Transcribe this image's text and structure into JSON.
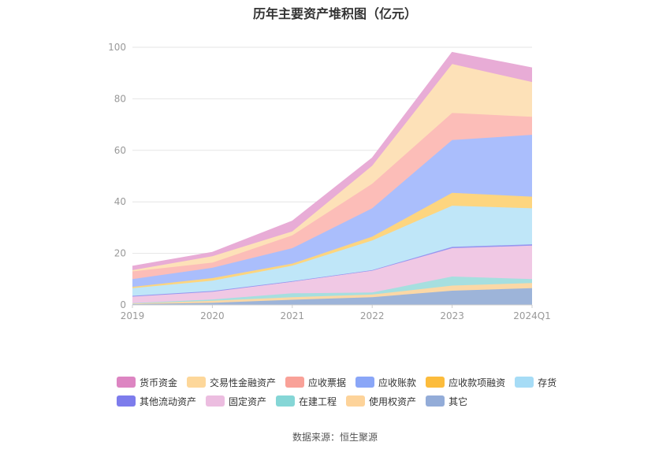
{
  "chart_data": {
    "type": "area",
    "title": "历年主要资产堆积图（亿元）",
    "categories": [
      "2019",
      "2020",
      "2021",
      "2022",
      "2023",
      "2024Q1"
    ],
    "y_ticks": [
      "0",
      "20",
      "40",
      "60",
      "80",
      "100"
    ],
    "ylim": [
      0,
      100
    ],
    "stacked": true,
    "grid": true,
    "legend_position": "bottom",
    "series": [
      {
        "name": "其它",
        "color": "#9db4d9",
        "values": [
          0.3,
          0.8,
          2.0,
          3.0,
          5.5,
          6.5
        ]
      },
      {
        "name": "使用权资产",
        "color": "#fbd8a6",
        "values": [
          0.2,
          0.8,
          1.0,
          1.0,
          2.0,
          2.0
        ]
      },
      {
        "name": "在建工程",
        "color": "#a6dfdf",
        "values": [
          0.2,
          0.5,
          1.5,
          0.8,
          3.5,
          1.5
        ]
      },
      {
        "name": "固定资产",
        "color": "#f0c8e4",
        "values": [
          2.5,
          3.0,
          4.5,
          8.5,
          11.0,
          13.0
        ]
      },
      {
        "name": "其他流动资产",
        "color": "#9796f0",
        "values": [
          0.3,
          0.3,
          0.2,
          0.2,
          0.5,
          0.5
        ]
      },
      {
        "name": "存货",
        "color": "#bfe6f8",
        "values": [
          3.0,
          4.0,
          6.0,
          11.5,
          16.0,
          14.0
        ]
      },
      {
        "name": "应收款项融资",
        "color": "#fdd57f",
        "values": [
          0.5,
          1.0,
          0.8,
          1.5,
          5.0,
          4.5
        ]
      },
      {
        "name": "应收账款",
        "color": "#aabefc",
        "values": [
          3.0,
          4.0,
          6.0,
          11.0,
          20.5,
          24.0
        ]
      },
      {
        "name": "应收票据",
        "color": "#fcbdb8",
        "values": [
          3.0,
          2.0,
          5.0,
          9.5,
          10.5,
          7.0
        ]
      },
      {
        "name": "交易性金融资产",
        "color": "#fde1b8",
        "values": [
          0.5,
          2.5,
          1.5,
          7.0,
          19.0,
          13.5
        ]
      },
      {
        "name": "货币资金",
        "color": "#e8acd6",
        "values": [
          1.5,
          1.5,
          4.0,
          3.0,
          4.5,
          5.5
        ]
      }
    ],
    "legend_rows": [
      [
        {
          "name": "货币资金",
          "color": "#dd85c2"
        },
        {
          "name": "交易性金融资产",
          "color": "#fdd79a"
        },
        {
          "name": "应收票据",
          "color": "#f9a198"
        },
        {
          "name": "应收账款",
          "color": "#8aa6f7"
        },
        {
          "name": "应收款项融资",
          "color": "#fcbc3c"
        },
        {
          "name": "存货",
          "color": "#a6dcf6"
        }
      ],
      [
        {
          "name": "其他流动资产",
          "color": "#7d7cec"
        },
        {
          "name": "固定资产",
          "color": "#ecbde0"
        },
        {
          "name": "在建工程",
          "color": "#85d6d6"
        },
        {
          "name": "使用权资产",
          "color": "#fdd39a"
        },
        {
          "name": "其它",
          "color": "#93acd8"
        }
      ]
    ]
  },
  "source": "数据来源：恒生聚源"
}
